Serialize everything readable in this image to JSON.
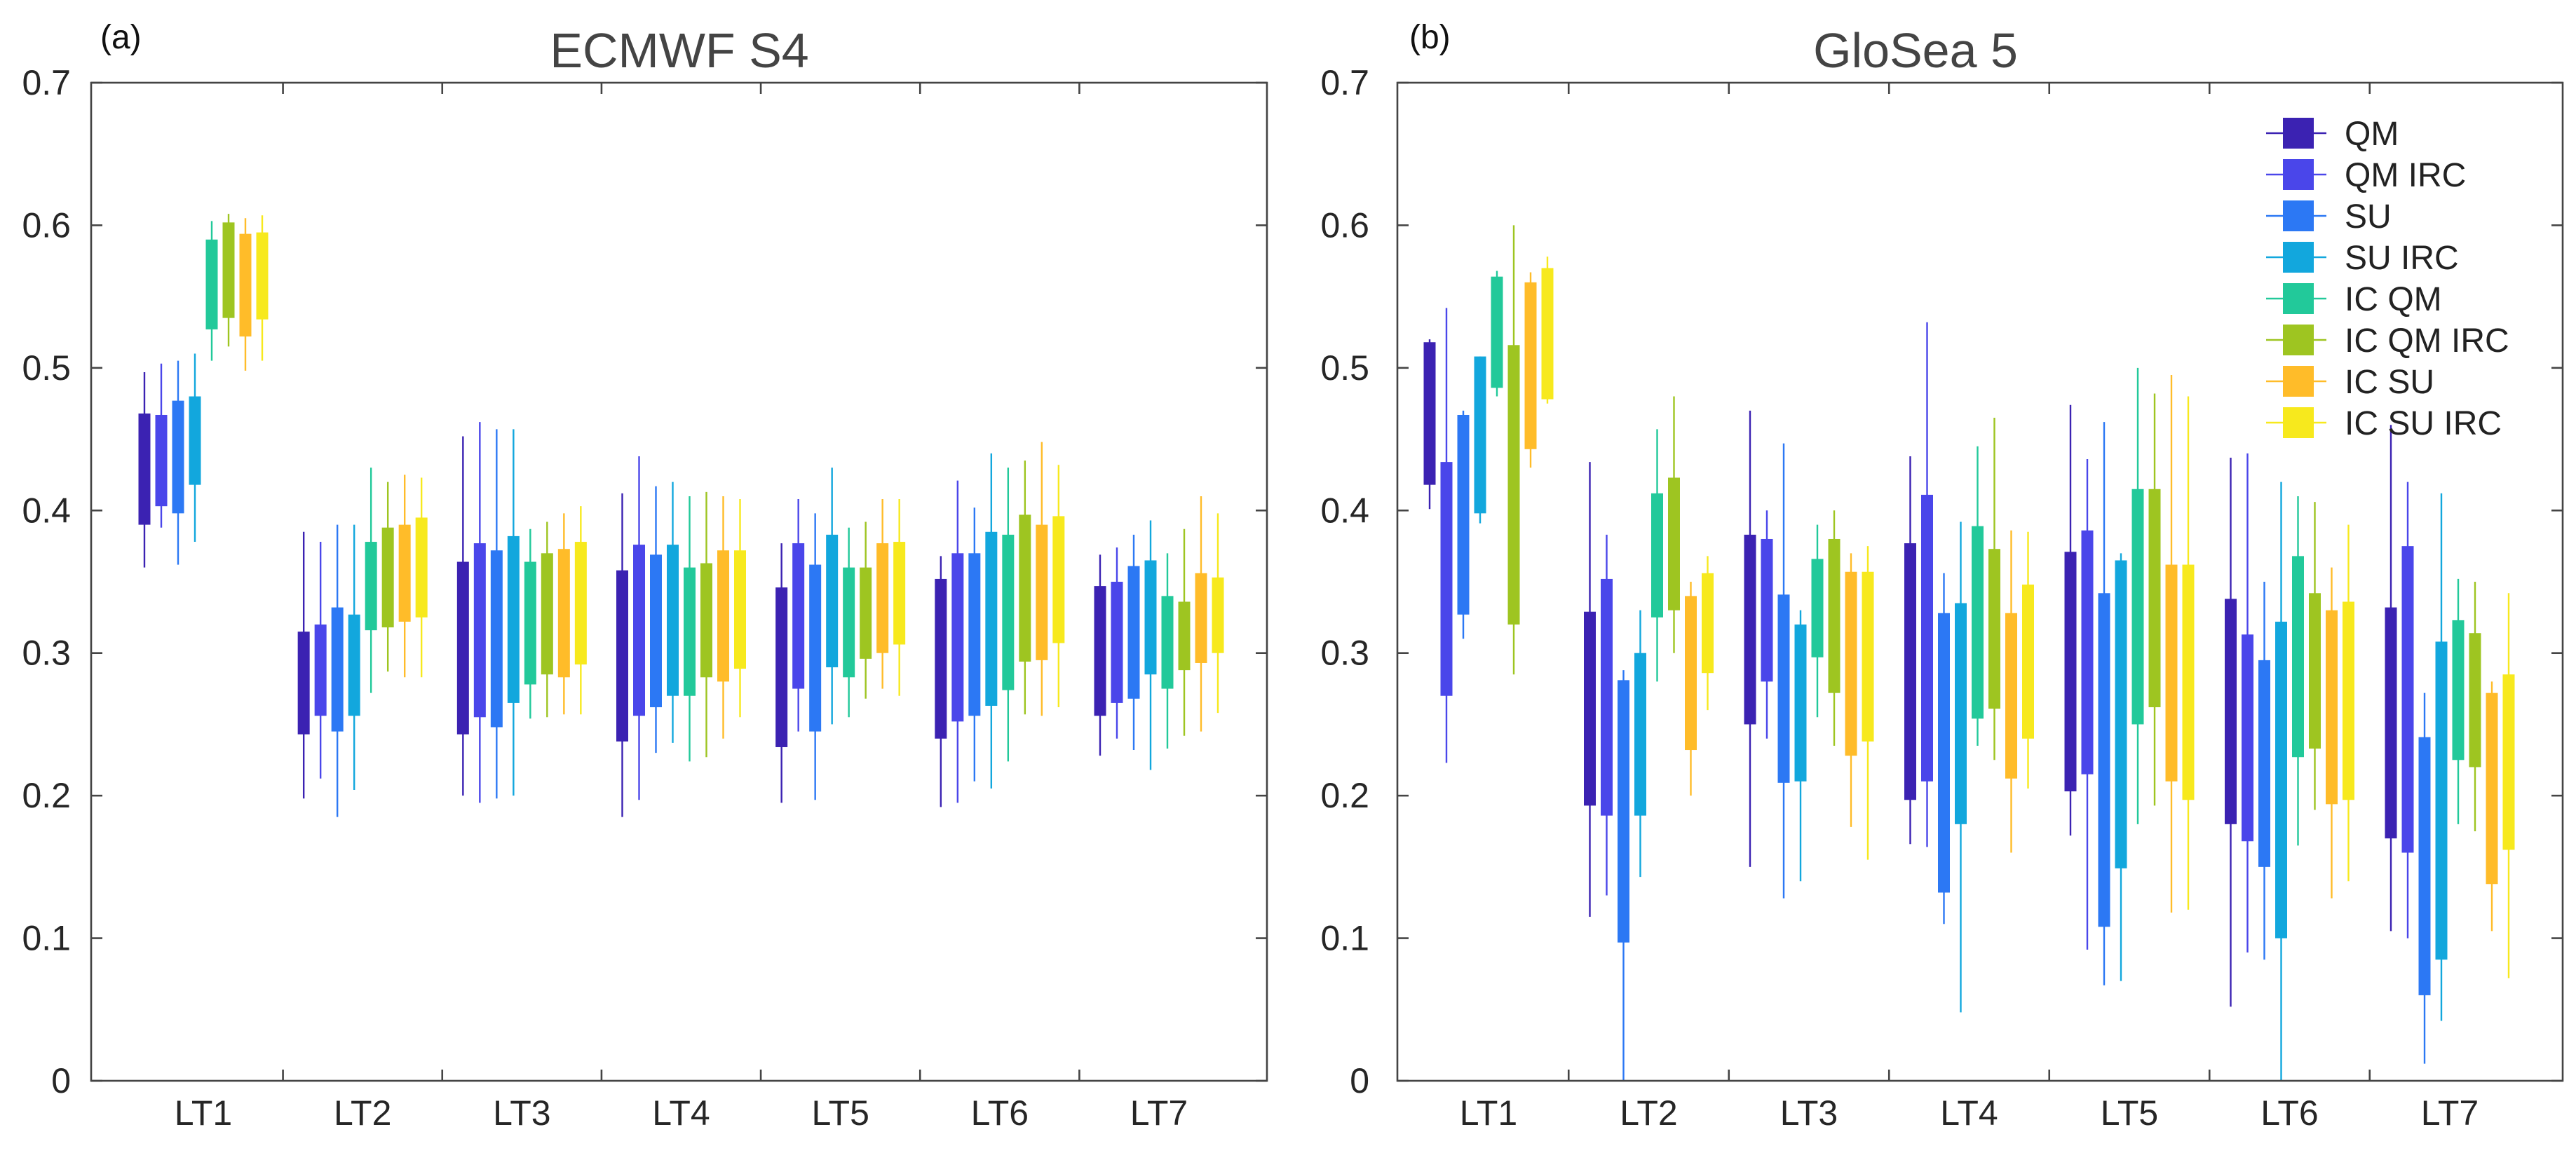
{
  "chart_data": [
    {
      "type": "boxplot",
      "panel_label": "(a)",
      "title": "ECMWF S4",
      "xlabel": "",
      "ylabel": "",
      "ylim": [
        0,
        0.7
      ],
      "yticks": [
        "0",
        "0.1",
        "0.2",
        "0.3",
        "0.4",
        "0.5",
        "0.6",
        "0.7"
      ],
      "categories": [
        "LT1",
        "LT2",
        "LT3",
        "LT4",
        "LT5",
        "LT6",
        "LT7"
      ],
      "series": [
        {
          "name": "QM",
          "color": "#3b22b2",
          "boxes": [
            {
              "low": 0.36,
              "q1": 0.39,
              "q3": 0.468,
              "high": 0.497
            },
            {
              "low": 0.198,
              "q1": 0.243,
              "q3": 0.315,
              "high": 0.385
            },
            {
              "low": 0.2,
              "q1": 0.243,
              "q3": 0.364,
              "high": 0.452
            },
            {
              "low": 0.185,
              "q1": 0.238,
              "q3": 0.358,
              "high": 0.412
            },
            {
              "low": 0.195,
              "q1": 0.234,
              "q3": 0.346,
              "high": 0.377
            },
            {
              "low": 0.192,
              "q1": 0.24,
              "q3": 0.352,
              "high": 0.368
            },
            {
              "low": 0.228,
              "q1": 0.256,
              "q3": 0.347,
              "high": 0.369
            }
          ]
        },
        {
          "name": "QM IRC",
          "color": "#4a46ea",
          "boxes": [
            {
              "low": 0.388,
              "q1": 0.403,
              "q3": 0.467,
              "high": 0.503
            },
            {
              "low": 0.212,
              "q1": 0.256,
              "q3": 0.32,
              "high": 0.378
            },
            {
              "low": 0.195,
              "q1": 0.255,
              "q3": 0.377,
              "high": 0.462
            },
            {
              "low": 0.197,
              "q1": 0.256,
              "q3": 0.376,
              "high": 0.438
            },
            {
              "low": 0.245,
              "q1": 0.275,
              "q3": 0.377,
              "high": 0.408
            },
            {
              "low": 0.195,
              "q1": 0.252,
              "q3": 0.37,
              "high": 0.421
            },
            {
              "low": 0.24,
              "q1": 0.265,
              "q3": 0.35,
              "high": 0.374
            }
          ]
        },
        {
          "name": "SU",
          "color": "#2c78f4",
          "boxes": [
            {
              "low": 0.362,
              "q1": 0.398,
              "q3": 0.477,
              "high": 0.505
            },
            {
              "low": 0.185,
              "q1": 0.245,
              "q3": 0.332,
              "high": 0.39
            },
            {
              "low": 0.198,
              "q1": 0.248,
              "q3": 0.372,
              "high": 0.457
            },
            {
              "low": 0.23,
              "q1": 0.262,
              "q3": 0.369,
              "high": 0.417
            },
            {
              "low": 0.197,
              "q1": 0.245,
              "q3": 0.362,
              "high": 0.398
            },
            {
              "low": 0.21,
              "q1": 0.256,
              "q3": 0.37,
              "high": 0.402
            },
            {
              "low": 0.232,
              "q1": 0.268,
              "q3": 0.361,
              "high": 0.383
            }
          ]
        },
        {
          "name": "SU IRC",
          "color": "#12a7dd",
          "boxes": [
            {
              "low": 0.378,
              "q1": 0.418,
              "q3": 0.48,
              "high": 0.51
            },
            {
              "low": 0.204,
              "q1": 0.256,
              "q3": 0.327,
              "high": 0.39
            },
            {
              "low": 0.2,
              "q1": 0.265,
              "q3": 0.382,
              "high": 0.457
            },
            {
              "low": 0.237,
              "q1": 0.27,
              "q3": 0.376,
              "high": 0.42
            },
            {
              "low": 0.25,
              "q1": 0.29,
              "q3": 0.383,
              "high": 0.43
            },
            {
              "low": 0.205,
              "q1": 0.263,
              "q3": 0.385,
              "high": 0.44
            },
            {
              "low": 0.218,
              "q1": 0.285,
              "q3": 0.365,
              "high": 0.393
            }
          ]
        },
        {
          "name": "IC QM",
          "color": "#22c99a",
          "boxes": [
            {
              "low": 0.505,
              "q1": 0.527,
              "q3": 0.59,
              "high": 0.603
            },
            {
              "low": 0.272,
              "q1": 0.316,
              "q3": 0.378,
              "high": 0.43
            },
            {
              "low": 0.254,
              "q1": 0.278,
              "q3": 0.364,
              "high": 0.387
            },
            {
              "low": 0.224,
              "q1": 0.27,
              "q3": 0.36,
              "high": 0.41
            },
            {
              "low": 0.255,
              "q1": 0.283,
              "q3": 0.36,
              "high": 0.388
            },
            {
              "low": 0.224,
              "q1": 0.274,
              "q3": 0.383,
              "high": 0.43
            },
            {
              "low": 0.233,
              "q1": 0.275,
              "q3": 0.34,
              "high": 0.37
            }
          ]
        },
        {
          "name": "IC QM IRC",
          "color": "#9ec521",
          "boxes": [
            {
              "low": 0.515,
              "q1": 0.535,
              "q3": 0.602,
              "high": 0.608
            },
            {
              "low": 0.287,
              "q1": 0.318,
              "q3": 0.388,
              "high": 0.42
            },
            {
              "low": 0.255,
              "q1": 0.285,
              "q3": 0.37,
              "high": 0.392
            },
            {
              "low": 0.227,
              "q1": 0.283,
              "q3": 0.363,
              "high": 0.413
            },
            {
              "low": 0.268,
              "q1": 0.296,
              "q3": 0.36,
              "high": 0.392
            },
            {
              "low": 0.257,
              "q1": 0.294,
              "q3": 0.397,
              "high": 0.435
            },
            {
              "low": 0.242,
              "q1": 0.288,
              "q3": 0.336,
              "high": 0.387
            }
          ]
        },
        {
          "name": "IC SU",
          "color": "#ffbc29",
          "boxes": [
            {
              "low": 0.498,
              "q1": 0.522,
              "q3": 0.594,
              "high": 0.605
            },
            {
              "low": 0.283,
              "q1": 0.322,
              "q3": 0.39,
              "high": 0.425
            },
            {
              "low": 0.257,
              "q1": 0.283,
              "q3": 0.373,
              "high": 0.398
            },
            {
              "low": 0.24,
              "q1": 0.28,
              "q3": 0.372,
              "high": 0.41
            },
            {
              "low": 0.275,
              "q1": 0.3,
              "q3": 0.377,
              "high": 0.408
            },
            {
              "low": 0.256,
              "q1": 0.295,
              "q3": 0.39,
              "high": 0.448
            },
            {
              "low": 0.245,
              "q1": 0.293,
              "q3": 0.356,
              "high": 0.41
            }
          ]
        },
        {
          "name": "IC SU IRC",
          "color": "#f7e91d",
          "boxes": [
            {
              "low": 0.505,
              "q1": 0.534,
              "q3": 0.595,
              "high": 0.607
            },
            {
              "low": 0.283,
              "q1": 0.325,
              "q3": 0.395,
              "high": 0.423
            },
            {
              "low": 0.257,
              "q1": 0.292,
              "q3": 0.378,
              "high": 0.403
            },
            {
              "low": 0.255,
              "q1": 0.289,
              "q3": 0.372,
              "high": 0.408
            },
            {
              "low": 0.27,
              "q1": 0.306,
              "q3": 0.378,
              "high": 0.408
            },
            {
              "low": 0.262,
              "q1": 0.307,
              "q3": 0.396,
              "high": 0.432
            },
            {
              "low": 0.258,
              "q1": 0.3,
              "q3": 0.353,
              "high": 0.398
            }
          ]
        }
      ]
    },
    {
      "type": "boxplot",
      "panel_label": "(b)",
      "title": "GloSea 5",
      "xlabel": "",
      "ylabel": "",
      "ylim": [
        0,
        0.7
      ],
      "yticks": [
        "0",
        "0.1",
        "0.2",
        "0.3",
        "0.4",
        "0.5",
        "0.6",
        "0.7"
      ],
      "categories": [
        "LT1",
        "LT2",
        "LT3",
        "LT4",
        "LT5",
        "LT6",
        "LT7"
      ],
      "legend": {
        "location": "top-right",
        "entries": [
          "QM",
          "QM IRC",
          "SU",
          "SU IRC",
          "IC QM",
          "IC QM IRC",
          "IC SU",
          "IC SU IRC"
        ]
      },
      "series": [
        {
          "name": "QM",
          "color": "#3b22b2",
          "boxes": [
            {
              "low": 0.401,
              "q1": 0.418,
              "q3": 0.518,
              "high": 0.52
            },
            {
              "low": 0.115,
              "q1": 0.193,
              "q3": 0.329,
              "high": 0.434
            },
            {
              "low": 0.15,
              "q1": 0.25,
              "q3": 0.383,
              "high": 0.47
            },
            {
              "low": 0.166,
              "q1": 0.197,
              "q3": 0.377,
              "high": 0.438
            },
            {
              "low": 0.172,
              "q1": 0.203,
              "q3": 0.371,
              "high": 0.474
            },
            {
              "low": 0.052,
              "q1": 0.18,
              "q3": 0.338,
              "high": 0.437
            },
            {
              "low": 0.105,
              "q1": 0.17,
              "q3": 0.332,
              "high": 0.46
            }
          ]
        },
        {
          "name": "QM IRC",
          "color": "#4a46ea",
          "boxes": [
            {
              "low": 0.223,
              "q1": 0.27,
              "q3": 0.434,
              "high": 0.542
            },
            {
              "low": 0.13,
              "q1": 0.186,
              "q3": 0.352,
              "high": 0.383
            },
            {
              "low": 0.24,
              "q1": 0.28,
              "q3": 0.38,
              "high": 0.4
            },
            {
              "low": 0.164,
              "q1": 0.21,
              "q3": 0.411,
              "high": 0.532
            },
            {
              "low": 0.092,
              "q1": 0.215,
              "q3": 0.386,
              "high": 0.436
            },
            {
              "low": 0.09,
              "q1": 0.168,
              "q3": 0.313,
              "high": 0.44
            },
            {
              "low": 0.1,
              "q1": 0.16,
              "q3": 0.375,
              "high": 0.42
            }
          ]
        },
        {
          "name": "SU",
          "color": "#2c78f4",
          "boxes": [
            {
              "low": 0.31,
              "q1": 0.327,
              "q3": 0.467,
              "high": 0.47
            },
            {
              "low": 0,
              "q1": 0.097,
              "q3": 0.281,
              "high": 0.288
            },
            {
              "low": 0.128,
              "q1": 0.209,
              "q3": 0.341,
              "high": 0.447
            },
            {
              "low": 0.11,
              "q1": 0.132,
              "q3": 0.328,
              "high": 0.356
            },
            {
              "low": 0.067,
              "q1": 0.108,
              "q3": 0.342,
              "high": 0.462
            },
            {
              "low": 0.085,
              "q1": 0.15,
              "q3": 0.295,
              "high": 0.35
            },
            {
              "low": 0.012,
              "q1": 0.06,
              "q3": 0.241,
              "high": 0.272
            }
          ]
        },
        {
          "name": "SU IRC",
          "color": "#12a7dd",
          "boxes": [
            {
              "low": 0.391,
              "q1": 0.398,
              "q3": 0.508,
              "high": 0.508
            },
            {
              "low": 0.143,
              "q1": 0.186,
              "q3": 0.3,
              "high": 0.33
            },
            {
              "low": 0.14,
              "q1": 0.21,
              "q3": 0.32,
              "high": 0.33
            },
            {
              "low": 0.048,
              "q1": 0.18,
              "q3": 0.335,
              "high": 0.392
            },
            {
              "low": 0.07,
              "q1": 0.149,
              "q3": 0.365,
              "high": 0.37
            },
            {
              "low": 0,
              "q1": 0.1,
              "q3": 0.322,
              "high": 0.42
            },
            {
              "low": 0.042,
              "q1": 0.085,
              "q3": 0.308,
              "high": 0.412
            }
          ]
        },
        {
          "name": "IC QM",
          "color": "#22c99a",
          "boxes": [
            {
              "low": 0.48,
              "q1": 0.486,
              "q3": 0.564,
              "high": 0.568
            },
            {
              "low": 0.28,
              "q1": 0.325,
              "q3": 0.412,
              "high": 0.457
            },
            {
              "low": 0.255,
              "q1": 0.297,
              "q3": 0.366,
              "high": 0.39
            },
            {
              "low": 0.235,
              "q1": 0.254,
              "q3": 0.389,
              "high": 0.445
            },
            {
              "low": 0.18,
              "q1": 0.25,
              "q3": 0.415,
              "high": 0.5
            },
            {
              "low": 0.165,
              "q1": 0.227,
              "q3": 0.368,
              "high": 0.41
            },
            {
              "low": 0.18,
              "q1": 0.225,
              "q3": 0.323,
              "high": 0.352
            }
          ]
        },
        {
          "name": "IC QM IRC",
          "color": "#9ec521",
          "boxes": [
            {
              "low": 0.285,
              "q1": 0.32,
              "q3": 0.516,
              "high": 0.6
            },
            {
              "low": 0.3,
              "q1": 0.33,
              "q3": 0.423,
              "high": 0.48
            },
            {
              "low": 0.235,
              "q1": 0.272,
              "q3": 0.38,
              "high": 0.4
            },
            {
              "low": 0.225,
              "q1": 0.261,
              "q3": 0.373,
              "high": 0.465
            },
            {
              "low": 0.193,
              "q1": 0.262,
              "q3": 0.415,
              "high": 0.482
            },
            {
              "low": 0.19,
              "q1": 0.233,
              "q3": 0.342,
              "high": 0.406
            },
            {
              "low": 0.175,
              "q1": 0.22,
              "q3": 0.314,
              "high": 0.35
            }
          ]
        },
        {
          "name": "IC SU",
          "color": "#ffbc29",
          "boxes": [
            {
              "low": 0.43,
              "q1": 0.443,
              "q3": 0.56,
              "high": 0.567
            },
            {
              "low": 0.2,
              "q1": 0.232,
              "q3": 0.34,
              "high": 0.35
            },
            {
              "low": 0.178,
              "q1": 0.228,
              "q3": 0.357,
              "high": 0.37
            },
            {
              "low": 0.16,
              "q1": 0.212,
              "q3": 0.328,
              "high": 0.386
            },
            {
              "low": 0.118,
              "q1": 0.21,
              "q3": 0.362,
              "high": 0.495
            },
            {
              "low": 0.128,
              "q1": 0.194,
              "q3": 0.33,
              "high": 0.36
            },
            {
              "low": 0.105,
              "q1": 0.138,
              "q3": 0.272,
              "high": 0.28
            }
          ]
        },
        {
          "name": "IC SU IRC",
          "color": "#f7e91d",
          "boxes": [
            {
              "low": 0.475,
              "q1": 0.478,
              "q3": 0.57,
              "high": 0.578
            },
            {
              "low": 0.26,
              "q1": 0.286,
              "q3": 0.356,
              "high": 0.368
            },
            {
              "low": 0.155,
              "q1": 0.238,
              "q3": 0.357,
              "high": 0.375
            },
            {
              "low": 0.205,
              "q1": 0.24,
              "q3": 0.348,
              "high": 0.385
            },
            {
              "low": 0.12,
              "q1": 0.197,
              "q3": 0.362,
              "high": 0.48
            },
            {
              "low": 0.14,
              "q1": 0.197,
              "q3": 0.336,
              "high": 0.39
            },
            {
              "low": 0.072,
              "q1": 0.162,
              "q3": 0.285,
              "high": 0.342
            }
          ]
        }
      ]
    }
  ]
}
